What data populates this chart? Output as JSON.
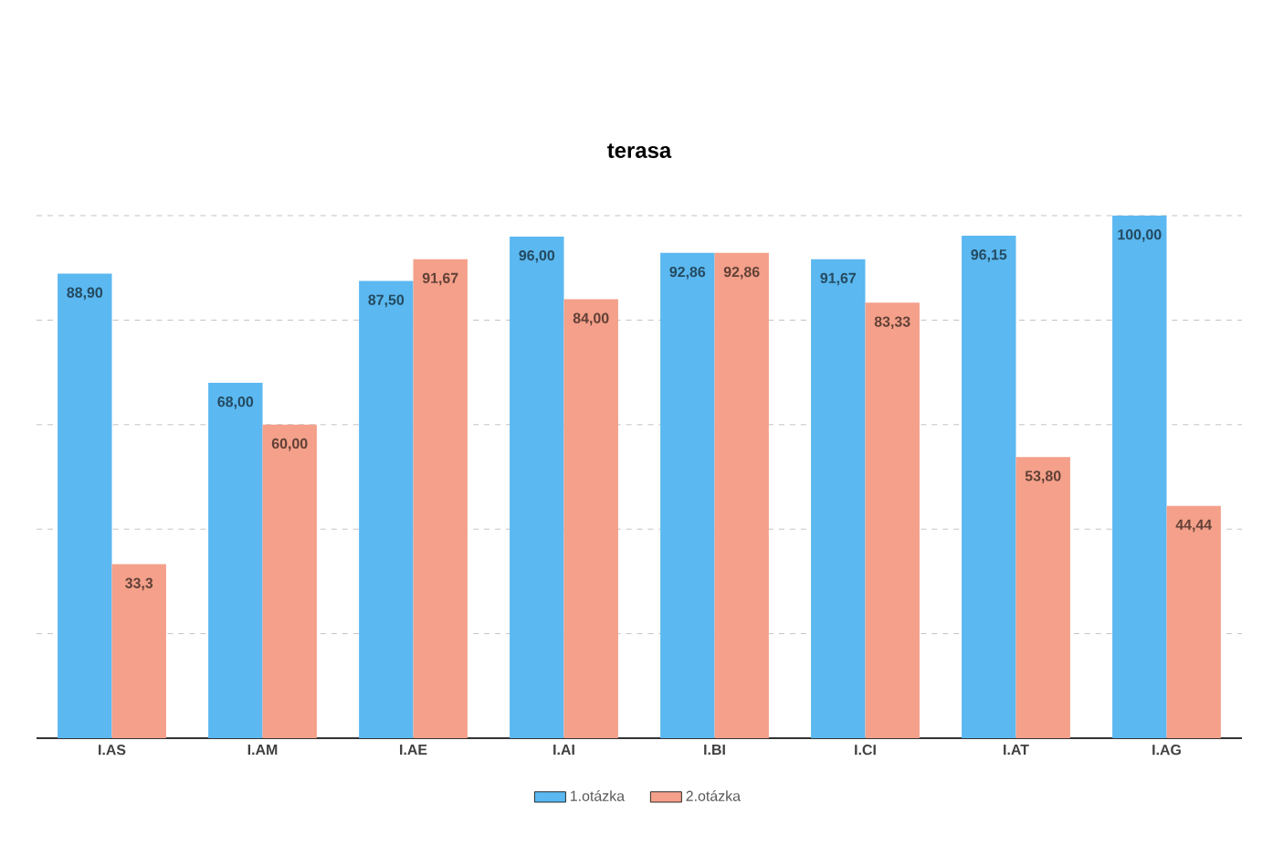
{
  "chart_data": {
    "type": "bar",
    "title": "terasa",
    "categories": [
      "I.AS",
      "I.AM",
      "I.AE",
      "I.AI",
      "I.BI",
      "I.CI",
      "I.AT",
      "I.AG"
    ],
    "series": [
      {
        "name": "1.otázka",
        "color": "#5bb8f0",
        "values": [
          88.9,
          68,
          87.5,
          96,
          92.86,
          91.67,
          96.15,
          100
        ],
        "value_labels": [
          "88,90",
          "68,00",
          "87,50",
          "96,00",
          "92,86",
          "91,67",
          "96,15",
          "100,00"
        ]
      },
      {
        "name": "2.otázka",
        "color": "#f4a08a",
        "values": [
          33.3,
          60,
          91.67,
          84,
          92.86,
          83.33,
          53.8,
          44.44
        ],
        "value_labels": [
          "33,3",
          "60,00",
          "91,67",
          "84,00",
          "92,86",
          "83,33",
          "53,80",
          "44,44"
        ]
      }
    ],
    "ylim": [
      0,
      100
    ],
    "yticks": [
      {
        "value": 0,
        "label": null
      },
      {
        "value": 20,
        "label": null
      },
      {
        "value": 40,
        "label": null
      },
      {
        "value": 60,
        "label": null
      },
      {
        "value": 80,
        "label": null
      },
      {
        "value": 100,
        "label": null
      }
    ],
    "grid": "y",
    "tick_labels": "x",
    "legend": "bottom"
  }
}
